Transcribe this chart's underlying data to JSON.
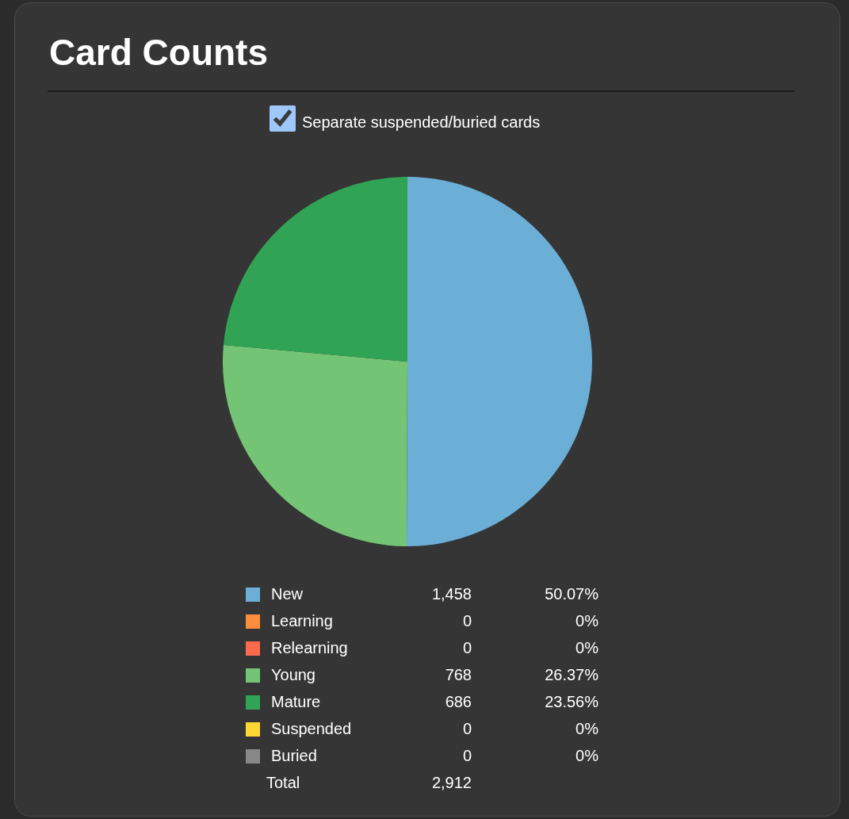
{
  "chart_data": {
    "type": "pie",
    "title": "Card Counts",
    "categories": [
      "New",
      "Learning",
      "Relearning",
      "Young",
      "Mature",
      "Suspended",
      "Buried"
    ],
    "values": [
      1458,
      0,
      0,
      768,
      686,
      0,
      0
    ],
    "colors": [
      "#6baed6",
      "#fd8d3c",
      "#fb6a4a",
      "#74c476",
      "#31a354",
      "#fdd835",
      "#888888"
    ],
    "value_labels": [
      "1,458",
      "0",
      "0",
      "768",
      "686",
      "0",
      "0"
    ],
    "totals": [
      "2,912"
    ],
    "annotations": [
      "50.07%",
      "0%",
      "0%",
      "26.37%",
      "23.56%",
      "0%",
      "0%",
      "Total",
      "Separate suspended/buried cards"
    ],
    "legend": "bottom"
  }
}
